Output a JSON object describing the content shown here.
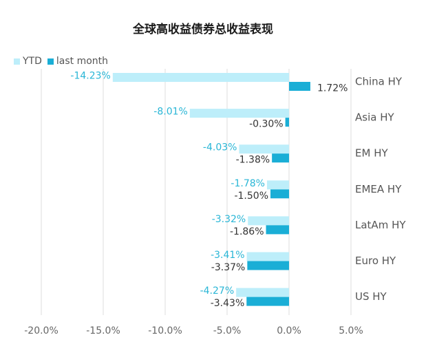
{
  "chart_data": {
    "type": "bar",
    "orientation": "horizontal",
    "title": "全球高收益债券总收益表现",
    "categories": [
      "China HY",
      "Asia HY",
      "EM HY",
      "EMEA HY",
      "LatAm HY",
      "Euro HY",
      "US HY"
    ],
    "series": [
      {
        "name": "YTD",
        "color": "#bdeefa",
        "label_color": "#29b6d6",
        "values": [
          -14.23,
          -8.01,
          -4.03,
          -1.78,
          -3.32,
          -3.41,
          -4.27
        ],
        "labels": [
          "-14.23%",
          "-8.01%",
          "-4.03%",
          "-1.78%",
          "-3.32%",
          "-3.41%",
          "-4.27%"
        ]
      },
      {
        "name": "last month",
        "color": "#1aaed6",
        "label_color": "#333333",
        "values": [
          1.72,
          -0.3,
          -1.38,
          -1.5,
          -1.86,
          -3.37,
          -3.43
        ],
        "labels": [
          "1.72%",
          "-0.30%",
          "-1.38%",
          "-1.50%",
          "-1.86%",
          "-3.37%",
          "-3.43%"
        ]
      }
    ],
    "xlim": [
      -20,
      5
    ],
    "xticks": [
      -20,
      -15,
      -10,
      -5,
      0,
      5
    ],
    "xtick_labels": [
      "-20.0%",
      "-15.0%",
      "-10.0%",
      "-5.0%",
      "0.0%",
      "5.0%"
    ],
    "grid": "vertical",
    "legend": "top-left"
  }
}
